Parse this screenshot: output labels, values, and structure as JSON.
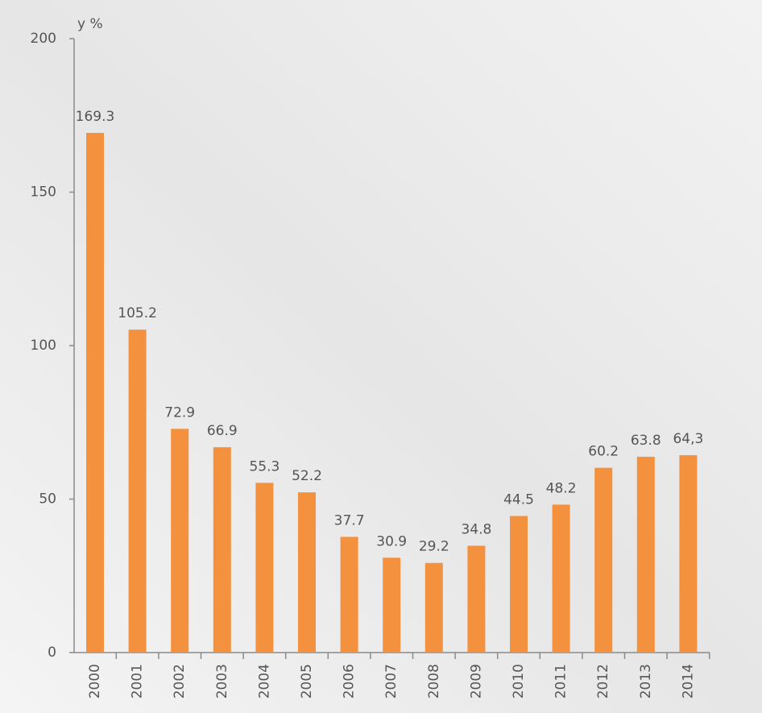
{
  "chart_data": {
    "type": "bar",
    "y_label": "y %",
    "categories": [
      "2000",
      "2001",
      "2002",
      "2003",
      "2004",
      "2005",
      "2006",
      "2007",
      "2008",
      "2009",
      "2010",
      "2011",
      "2012",
      "2013",
      "2014"
    ],
    "values": [
      169.3,
      105.2,
      72.9,
      66.9,
      55.3,
      52.2,
      37.7,
      30.9,
      29.2,
      34.8,
      44.5,
      48.2,
      60.2,
      63.8,
      64.3
    ],
    "value_labels": [
      "169.3",
      "105.2",
      "72.9",
      "66.9",
      "55.3",
      "52.2",
      "37.7",
      "30.9",
      "29.2",
      "34.8",
      "44.5",
      "48.2",
      "60.2",
      "63.8",
      "64,3"
    ],
    "color": "#f4913f",
    "ylim": [
      0,
      200
    ],
    "yticks": [
      0,
      50,
      100,
      150,
      200
    ],
    "grid": false
  }
}
